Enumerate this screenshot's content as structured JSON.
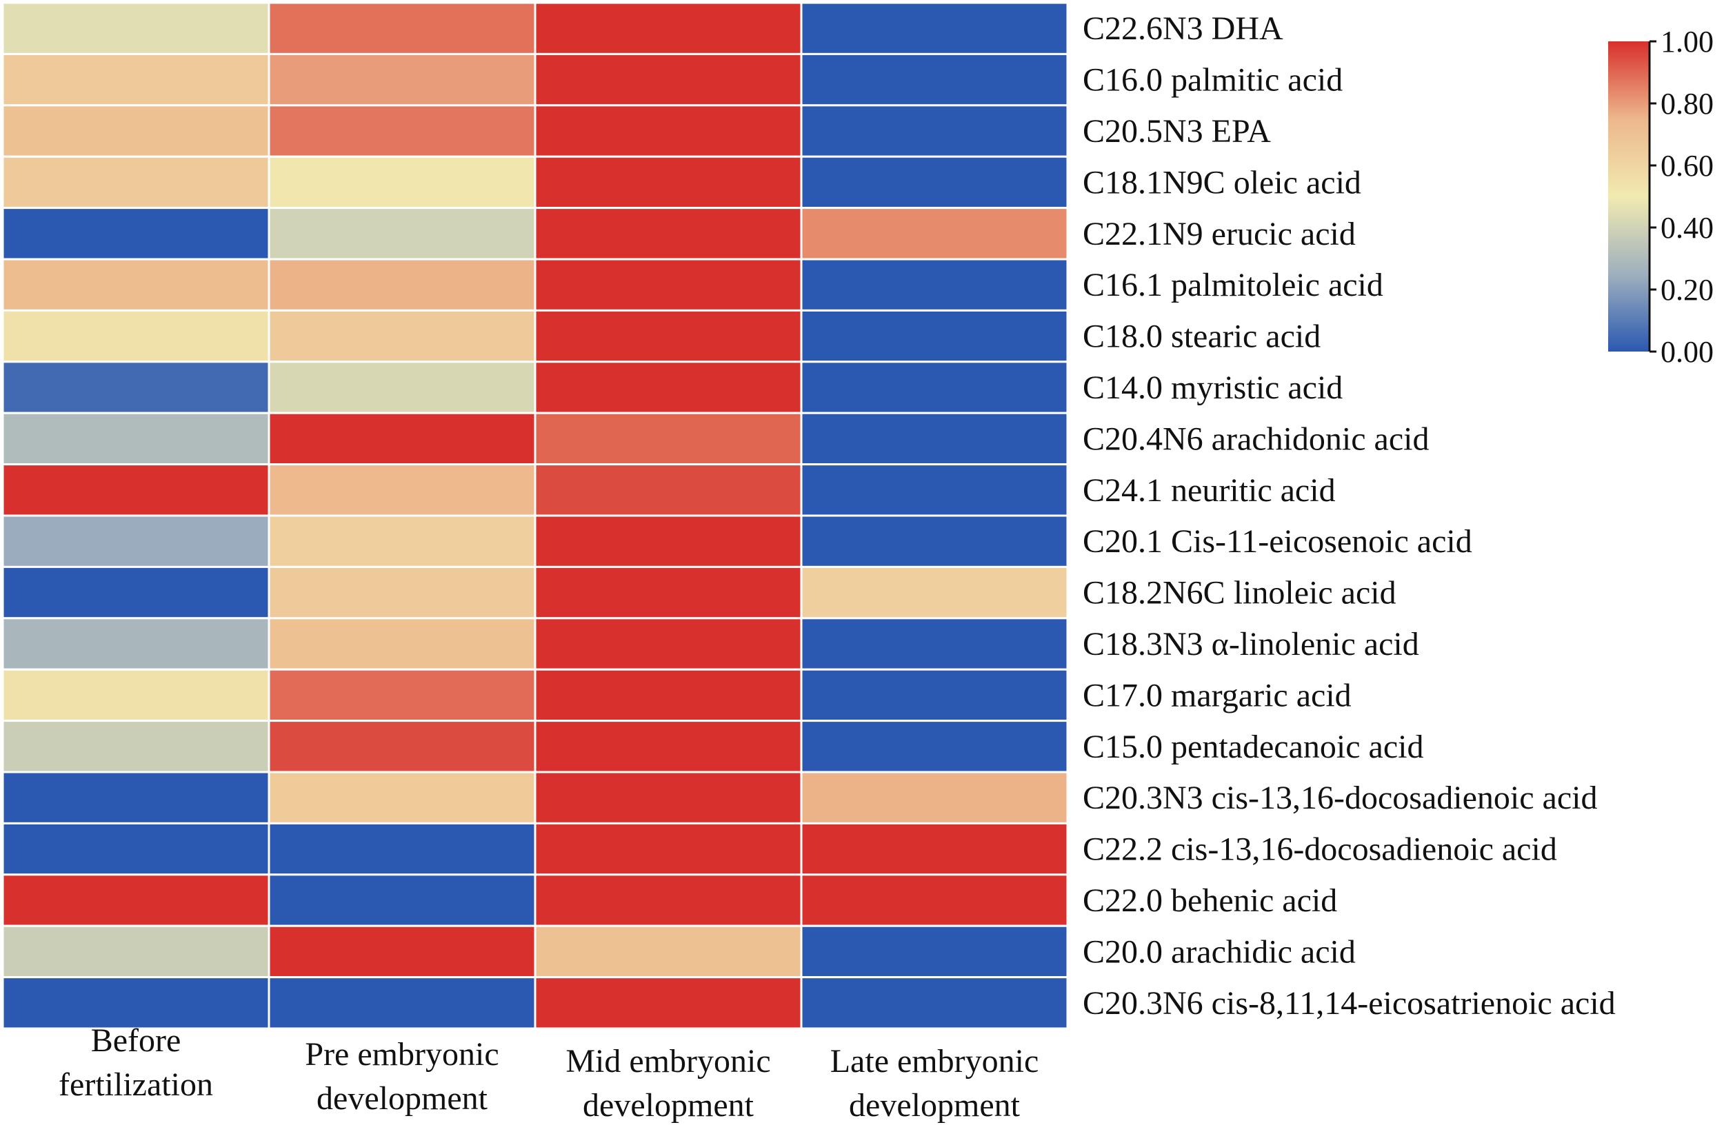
{
  "chart_data": {
    "type": "heatmap",
    "title": "",
    "columns": [
      [
        "Before",
        "fertilization"
      ],
      [
        "Pre embryonic",
        "development"
      ],
      [
        "Mid embryonic",
        "development"
      ],
      [
        "Late embryonic",
        "development"
      ]
    ],
    "rows": [
      "C22.6N3 DHA",
      "C16.0 palmitic acid",
      "C20.5N3 EPA",
      "C18.1N9C oleic acid",
      "C22.1N9 erucic acid",
      "C16.1 palmitoleic acid",
      "C18.0 stearic acid",
      "C14.0 myristic acid",
      "C20.4N6 arachidonic acid",
      "C24.1 neuritic acid",
      "C20.1 Cis-11-eicosenoic acid",
      "C18.2N6C linoleic acid",
      "C18.3N3 α-linolenic acid",
      "C17.0 margaric acid",
      "C15.0 pentadecanoic acid",
      "C20.3N3 cis-13,16-docosadienoic acid",
      "C22.2 cis-13,16-docosadienoic acid",
      "C22.0 behenic acid",
      "C20.0 arachidic acid",
      "C20.3N6 cis-8,11,14-eicosatrienoic acid"
    ],
    "values": [
      [
        0.45,
        0.88,
        1.0,
        0.0
      ],
      [
        0.66,
        0.8,
        1.0,
        0.0
      ],
      [
        0.7,
        0.87,
        1.0,
        0.0
      ],
      [
        0.66,
        0.52,
        1.0,
        0.0
      ],
      [
        0.0,
        0.4,
        1.0,
        0.83
      ],
      [
        0.72,
        0.76,
        1.0,
        0.0
      ],
      [
        0.55,
        0.66,
        1.0,
        0.0
      ],
      [
        0.05,
        0.42,
        1.0,
        0.0
      ],
      [
        0.3,
        1.0,
        0.9,
        0.0
      ],
      [
        1.0,
        0.74,
        0.95,
        0.0
      ],
      [
        0.24,
        0.63,
        1.0,
        0.0
      ],
      [
        0.0,
        0.66,
        1.0,
        0.63
      ],
      [
        0.28,
        0.7,
        1.0,
        0.0
      ],
      [
        0.55,
        0.89,
        1.0,
        0.0
      ],
      [
        0.38,
        0.95,
        1.0,
        0.0
      ],
      [
        0.0,
        0.65,
        1.0,
        0.76
      ],
      [
        0.0,
        0.0,
        1.0,
        1.0
      ],
      [
        1.0,
        0.0,
        1.0,
        1.0
      ],
      [
        0.38,
        1.0,
        0.7,
        0.0
      ],
      [
        0.0,
        0.0,
        1.0,
        0.0
      ]
    ],
    "colorbar": {
      "min": 0.0,
      "max": 1.0,
      "ticks": [
        "1.00",
        "0.80",
        "0.60",
        "0.40",
        "0.20",
        "0.00"
      ],
      "tick_values": [
        1.0,
        0.8,
        0.6,
        0.4,
        0.2,
        0.0
      ],
      "colors": [
        "#2B58B0",
        "#9FB0BE",
        "#F1EAB0",
        "#EDB78C",
        "#D8302C"
      ]
    }
  }
}
